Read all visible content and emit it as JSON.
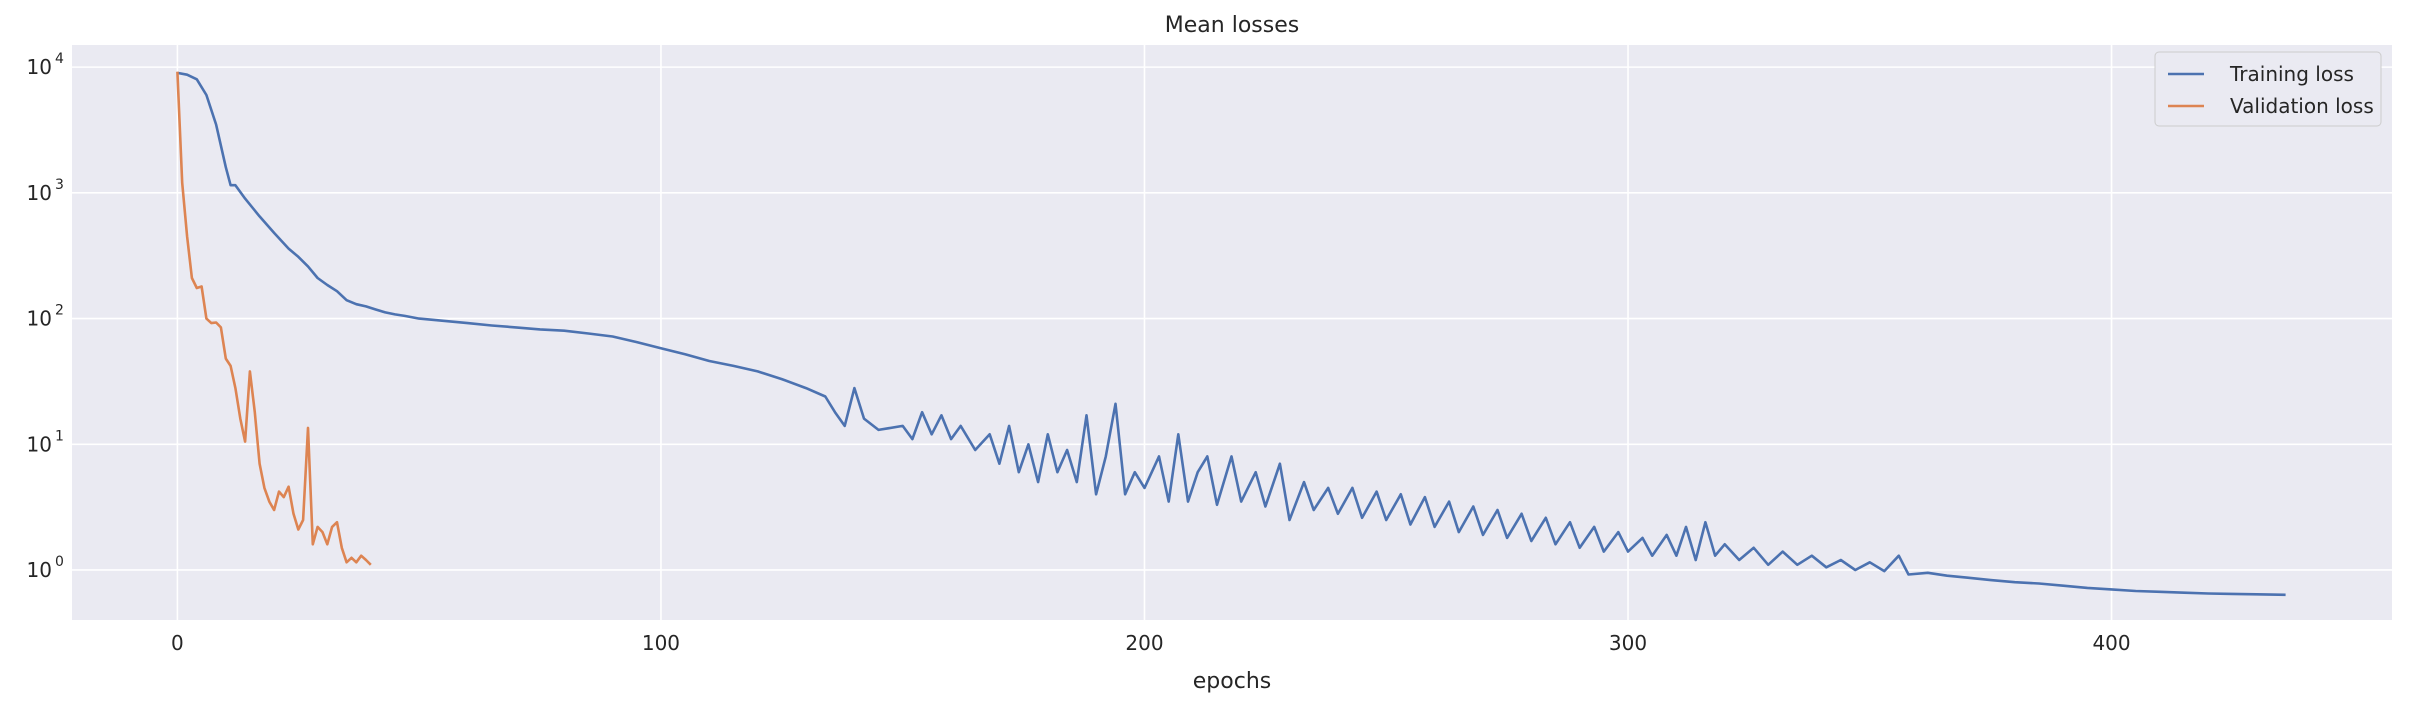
{
  "chart_data": {
    "type": "line",
    "title": "Mean losses",
    "xlabel": "epochs",
    "ylabel": "",
    "xlim": [
      -21.8,
      458
    ],
    "ylim": [
      0.4,
      15000
    ],
    "yscale": "log",
    "grid": true,
    "legend": "top-right",
    "x_ticks": [
      0,
      100,
      200,
      300,
      400
    ],
    "y_ticks": [
      {
        "value": 1,
        "base": "10",
        "exp": "0"
      },
      {
        "value": 10,
        "base": "10",
        "exp": "1"
      },
      {
        "value": 100,
        "base": "10",
        "exp": "2"
      },
      {
        "value": 1000,
        "base": "10",
        "exp": "3"
      },
      {
        "value": 10000,
        "base": "10",
        "exp": "4"
      }
    ],
    "series": [
      {
        "name": "Training loss",
        "color": "#4c72b0",
        "points": [
          [
            0,
            9000
          ],
          [
            2,
            8700
          ],
          [
            4,
            8000
          ],
          [
            6,
            6000
          ],
          [
            8,
            3500
          ],
          [
            10,
            1600
          ],
          [
            11,
            1150
          ],
          [
            12,
            1150
          ],
          [
            14,
            900
          ],
          [
            17,
            650
          ],
          [
            20,
            480
          ],
          [
            23,
            360
          ],
          [
            25,
            310
          ],
          [
            27,
            260
          ],
          [
            29,
            210
          ],
          [
            31,
            185
          ],
          [
            33,
            165
          ],
          [
            35,
            140
          ],
          [
            37,
            130
          ],
          [
            39,
            125
          ],
          [
            41,
            118
          ],
          [
            43,
            112
          ],
          [
            45,
            108
          ],
          [
            47,
            105
          ],
          [
            50,
            100
          ],
          [
            55,
            96
          ],
          [
            60,
            92
          ],
          [
            65,
            88
          ],
          [
            70,
            85
          ],
          [
            75,
            82
          ],
          [
            80,
            80
          ],
          [
            85,
            76
          ],
          [
            90,
            72
          ],
          [
            95,
            65
          ],
          [
            100,
            58
          ],
          [
            105,
            52
          ],
          [
            110,
            46
          ],
          [
            115,
            42
          ],
          [
            120,
            38
          ],
          [
            125,
            33
          ],
          [
            130,
            28
          ],
          [
            134,
            24
          ],
          [
            136,
            18
          ],
          [
            138,
            14
          ],
          [
            140,
            28
          ],
          [
            142,
            16
          ],
          [
            145,
            13
          ],
          [
            150,
            14
          ],
          [
            152,
            11
          ],
          [
            154,
            18
          ],
          [
            156,
            12
          ],
          [
            158,
            17
          ],
          [
            160,
            11
          ],
          [
            162,
            14
          ],
          [
            165,
            9
          ],
          [
            168,
            12
          ],
          [
            170,
            7
          ],
          [
            172,
            14
          ],
          [
            174,
            6
          ],
          [
            176,
            10
          ],
          [
            178,
            5
          ],
          [
            180,
            12
          ],
          [
            182,
            6
          ],
          [
            184,
            9
          ],
          [
            186,
            5
          ],
          [
            188,
            17
          ],
          [
            190,
            4
          ],
          [
            192,
            8
          ],
          [
            194,
            21
          ],
          [
            196,
            4
          ],
          [
            198,
            6
          ],
          [
            200,
            4.5
          ],
          [
            203,
            8
          ],
          [
            205,
            3.5
          ],
          [
            207,
            12
          ],
          [
            209,
            3.5
          ],
          [
            211,
            6
          ],
          [
            213,
            8
          ],
          [
            215,
            3.3
          ],
          [
            218,
            8
          ],
          [
            220,
            3.5
          ],
          [
            223,
            6
          ],
          [
            225,
            3.2
          ],
          [
            228,
            7
          ],
          [
            230,
            2.5
          ],
          [
            233,
            5
          ],
          [
            235,
            3
          ],
          [
            238,
            4.5
          ],
          [
            240,
            2.8
          ],
          [
            243,
            4.5
          ],
          [
            245,
            2.6
          ],
          [
            248,
            4.2
          ],
          [
            250,
            2.5
          ],
          [
            253,
            4
          ],
          [
            255,
            2.3
          ],
          [
            258,
            3.8
          ],
          [
            260,
            2.2
          ],
          [
            263,
            3.5
          ],
          [
            265,
            2
          ],
          [
            268,
            3.2
          ],
          [
            270,
            1.9
          ],
          [
            273,
            3
          ],
          [
            275,
            1.8
          ],
          [
            278,
            2.8
          ],
          [
            280,
            1.7
          ],
          [
            283,
            2.6
          ],
          [
            285,
            1.6
          ],
          [
            288,
            2.4
          ],
          [
            290,
            1.5
          ],
          [
            293,
            2.2
          ],
          [
            295,
            1.4
          ],
          [
            298,
            2
          ],
          [
            300,
            1.4
          ],
          [
            303,
            1.8
          ],
          [
            305,
            1.3
          ],
          [
            308,
            1.9
          ],
          [
            310,
            1.3
          ],
          [
            312,
            2.2
          ],
          [
            314,
            1.2
          ],
          [
            316,
            2.4
          ],
          [
            318,
            1.3
          ],
          [
            320,
            1.6
          ],
          [
            323,
            1.2
          ],
          [
            326,
            1.5
          ],
          [
            329,
            1.1
          ],
          [
            332,
            1.4
          ],
          [
            335,
            1.1
          ],
          [
            338,
            1.3
          ],
          [
            341,
            1.05
          ],
          [
            344,
            1.2
          ],
          [
            347,
            1
          ],
          [
            350,
            1.15
          ],
          [
            353,
            0.98
          ],
          [
            356,
            1.3
          ],
          [
            358,
            0.92
          ],
          [
            362,
            0.95
          ],
          [
            366,
            0.9
          ],
          [
            370,
            0.87
          ],
          [
            375,
            0.83
          ],
          [
            380,
            0.8
          ],
          [
            385,
            0.78
          ],
          [
            390,
            0.75
          ],
          [
            395,
            0.72
          ],
          [
            400,
            0.7
          ],
          [
            405,
            0.68
          ],
          [
            410,
            0.67
          ],
          [
            415,
            0.66
          ],
          [
            420,
            0.65
          ],
          [
            425,
            0.645
          ],
          [
            430,
            0.64
          ],
          [
            436,
            0.635
          ]
        ]
      },
      {
        "name": "Validation loss",
        "color": "#dd8452",
        "points": [
          [
            0,
            9200
          ],
          [
            1,
            1200
          ],
          [
            2,
            450
          ],
          [
            3,
            210
          ],
          [
            4,
            175
          ],
          [
            5,
            180
          ],
          [
            6,
            100
          ],
          [
            7,
            92
          ],
          [
            8,
            93
          ],
          [
            9,
            85
          ],
          [
            10,
            48
          ],
          [
            11,
            42
          ],
          [
            12,
            28
          ],
          [
            13,
            16
          ],
          [
            14,
            10.5
          ],
          [
            15,
            38
          ],
          [
            16,
            18
          ],
          [
            17,
            7
          ],
          [
            18,
            4.5
          ],
          [
            19,
            3.5
          ],
          [
            20,
            3
          ],
          [
            21,
            4.2
          ],
          [
            22,
            3.8
          ],
          [
            23,
            4.6
          ],
          [
            24,
            2.8
          ],
          [
            25,
            2.1
          ],
          [
            26,
            2.5
          ],
          [
            27,
            13.5
          ],
          [
            28,
            1.6
          ],
          [
            29,
            2.2
          ],
          [
            30,
            2
          ],
          [
            31,
            1.6
          ],
          [
            32,
            2.2
          ],
          [
            33,
            2.4
          ],
          [
            34,
            1.5
          ],
          [
            35,
            1.15
          ],
          [
            36,
            1.25
          ],
          [
            37,
            1.15
          ],
          [
            38,
            1.3
          ],
          [
            39,
            1.2
          ],
          [
            40,
            1.1
          ]
        ]
      }
    ]
  }
}
